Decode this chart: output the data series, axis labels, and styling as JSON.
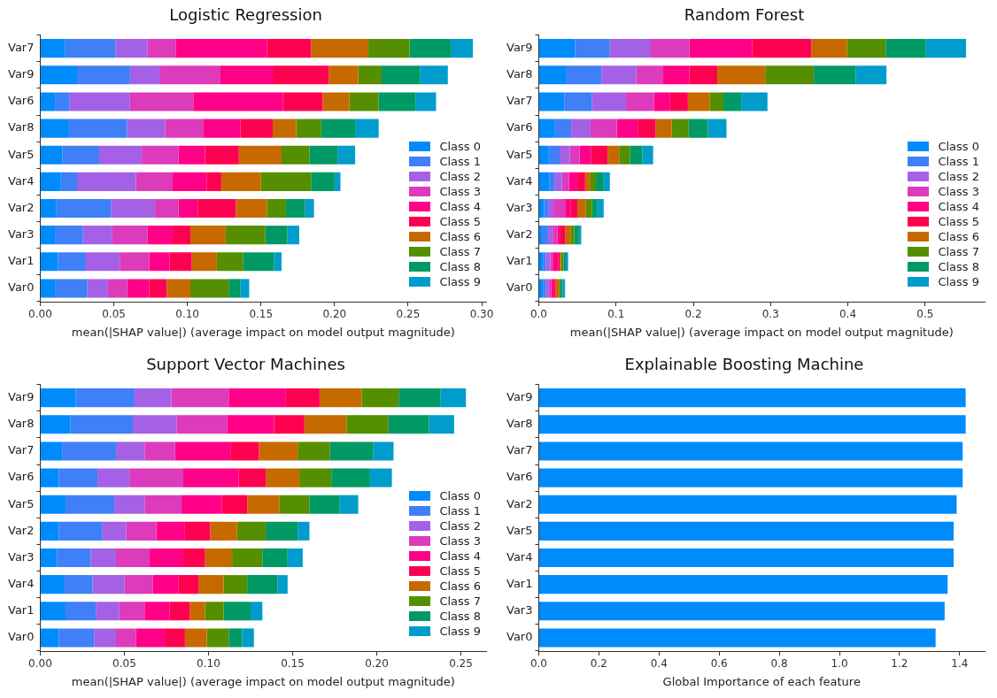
{
  "chart_data": [
    {
      "type": "bar",
      "orientation": "horizontal",
      "stacked": true,
      "title": "Logistic Regression",
      "xlabel": "mean(|SHAP value|) (average impact on model output magnitude)",
      "legend": "bottom right",
      "categories": [
        "Var7",
        "Var9",
        "Var6",
        "Var8",
        "Var5",
        "Var4",
        "Var2",
        "Var3",
        "Var1",
        "Var0"
      ],
      "xlim": [
        0,
        0.303
      ],
      "xticks": [
        {
          "value": 0,
          "label": "0.00"
        },
        {
          "value": 0.05,
          "label": "0.05"
        },
        {
          "value": 0.1,
          "label": "0.10"
        },
        {
          "value": 0.15,
          "label": "0.15"
        },
        {
          "value": 0.2,
          "label": "0.20"
        },
        {
          "value": 0.25,
          "label": "0.25"
        },
        {
          "value": 0.3,
          "label": "0.30"
        }
      ],
      "series": [
        {
          "name": "Class 0",
          "color": "#008bfb",
          "values": [
            0.017,
            0.025,
            0.01,
            0.019,
            0.015,
            0.014,
            0.011,
            0.01,
            0.012,
            0.01
          ]
        },
        {
          "name": "Class 1",
          "color": "#3f7ff7",
          "values": [
            0.034,
            0.036,
            0.01,
            0.04,
            0.025,
            0.011,
            0.037,
            0.019,
            0.019,
            0.022
          ]
        },
        {
          "name": "Class 2",
          "color": "#a561e6",
          "values": [
            0.022,
            0.02,
            0.041,
            0.026,
            0.029,
            0.04,
            0.03,
            0.02,
            0.023,
            0.014
          ]
        },
        {
          "name": "Class 3",
          "color": "#dc3bbb",
          "values": [
            0.019,
            0.041,
            0.043,
            0.026,
            0.025,
            0.025,
            0.016,
            0.024,
            0.02,
            0.013
          ]
        },
        {
          "name": "Class 4",
          "color": "#ff0087",
          "values": [
            0.062,
            0.036,
            0.061,
            0.025,
            0.018,
            0.023,
            0.013,
            0.017,
            0.014,
            0.015
          ]
        },
        {
          "name": "Class 5",
          "color": "#ff0050",
          "values": [
            0.03,
            0.038,
            0.027,
            0.022,
            0.023,
            0.01,
            0.026,
            0.012,
            0.015,
            0.012
          ]
        },
        {
          "name": "Class 6",
          "color": "#c66a00",
          "values": [
            0.039,
            0.02,
            0.018,
            0.016,
            0.029,
            0.027,
            0.021,
            0.024,
            0.017,
            0.016
          ]
        },
        {
          "name": "Class 7",
          "color": "#558f00",
          "values": [
            0.028,
            0.016,
            0.02,
            0.017,
            0.019,
            0.034,
            0.013,
            0.027,
            0.018,
            0.026
          ]
        },
        {
          "name": "Class 8",
          "color": "#009966",
          "values": [
            0.028,
            0.026,
            0.025,
            0.023,
            0.019,
            0.016,
            0.013,
            0.015,
            0.021,
            0.008
          ]
        },
        {
          "name": "Class 9",
          "color": "#009ccc",
          "values": [
            0.015,
            0.019,
            0.014,
            0.016,
            0.012,
            0.004,
            0.006,
            0.008,
            0.005,
            0.006
          ]
        }
      ]
    },
    {
      "type": "bar",
      "orientation": "horizontal",
      "stacked": true,
      "title": "Random Forest",
      "xlabel": "mean(|SHAP value|) (average impact on model output magnitude)",
      "legend": "bottom right",
      "categories": [
        "Var9",
        "Var8",
        "Var7",
        "Var6",
        "Var5",
        "Var4",
        "Var3",
        "Var2",
        "Var1",
        "Var0"
      ],
      "xlim": [
        0,
        0.577
      ],
      "xticks": [
        {
          "value": 0,
          "label": "0.0"
        },
        0.1,
        0.2,
        0.3,
        0.4,
        0.5
      ],
      "series": [
        {
          "name": "Class 0",
          "color": "#008bfb",
          "values": [
            0.047,
            0.036,
            0.033,
            0.021,
            0.013,
            0.014,
            0.007,
            0.004,
            0.006,
            0.006
          ]
        },
        {
          "name": "Class 1",
          "color": "#3f7ff7",
          "values": [
            0.045,
            0.045,
            0.036,
            0.021,
            0.014,
            0.007,
            0.005,
            0.008,
            0.003,
            0.003
          ]
        },
        {
          "name": "Class 2",
          "color": "#a561e6",
          "values": [
            0.053,
            0.045,
            0.044,
            0.025,
            0.013,
            0.009,
            0.007,
            0.006,
            0.006,
            0.004
          ]
        },
        {
          "name": "Class 3",
          "color": "#dc3bbb",
          "values": [
            0.05,
            0.035,
            0.036,
            0.034,
            0.013,
            0.009,
            0.015,
            0.006,
            0.003,
            0.003
          ]
        },
        {
          "name": "Class 4",
          "color": "#ff0087",
          "values": [
            0.081,
            0.034,
            0.021,
            0.027,
            0.015,
            0.011,
            0.007,
            0.004,
            0.007,
            0.004
          ]
        },
        {
          "name": "Class 5",
          "color": "#ff0050",
          "values": [
            0.077,
            0.036,
            0.023,
            0.023,
            0.021,
            0.01,
            0.009,
            0.006,
            0.002,
            0.002
          ]
        },
        {
          "name": "Class 6",
          "color": "#c66a00",
          "values": [
            0.046,
            0.062,
            0.028,
            0.021,
            0.015,
            0.007,
            0.011,
            0.007,
            0.002,
            0.004
          ]
        },
        {
          "name": "Class 7",
          "color": "#558f00",
          "values": [
            0.05,
            0.063,
            0.018,
            0.022,
            0.014,
            0.007,
            0.008,
            0.005,
            0.003,
            0.002
          ]
        },
        {
          "name": "Class 8",
          "color": "#009966",
          "values": [
            0.052,
            0.054,
            0.023,
            0.025,
            0.016,
            0.01,
            0.007,
            0.006,
            0.003,
            0.003
          ]
        },
        {
          "name": "Class 9",
          "color": "#009ccc",
          "values": [
            0.052,
            0.04,
            0.034,
            0.024,
            0.014,
            0.008,
            0.008,
            0.003,
            0.003,
            0.003
          ]
        }
      ]
    },
    {
      "type": "bar",
      "orientation": "horizontal",
      "stacked": true,
      "title": "Support Vector Machines",
      "xlabel": "mean(|SHAP value|) (average impact on model output magnitude)",
      "legend": "bottom right",
      "categories": [
        "Var9",
        "Var8",
        "Var7",
        "Var6",
        "Var5",
        "Var2",
        "Var3",
        "Var4",
        "Var1",
        "Var0"
      ],
      "xlim": [
        0,
        0.265
      ],
      "xticks": [
        {
          "value": 0,
          "label": "0.00"
        },
        {
          "value": 0.05,
          "label": "0.05"
        },
        {
          "value": 0.1,
          "label": "0.10"
        },
        {
          "value": 0.15,
          "label": "0.15"
        },
        {
          "value": 0.2,
          "label": "0.20"
        },
        {
          "value": 0.25,
          "label": "0.25"
        }
      ],
      "series": [
        {
          "name": "Class 0",
          "color": "#008bfb",
          "values": [
            0.021,
            0.018,
            0.013,
            0.011,
            0.015,
            0.011,
            0.01,
            0.014,
            0.015,
            0.011
          ]
        },
        {
          "name": "Class 1",
          "color": "#3f7ff7",
          "values": [
            0.035,
            0.037,
            0.032,
            0.023,
            0.029,
            0.026,
            0.02,
            0.017,
            0.018,
            0.021
          ]
        },
        {
          "name": "Class 2",
          "color": "#a561e6",
          "values": [
            0.022,
            0.026,
            0.017,
            0.019,
            0.018,
            0.014,
            0.015,
            0.019,
            0.014,
            0.013
          ]
        },
        {
          "name": "Class 3",
          "color": "#dc3bbb",
          "values": [
            0.034,
            0.03,
            0.018,
            0.032,
            0.022,
            0.018,
            0.02,
            0.017,
            0.015,
            0.012
          ]
        },
        {
          "name": "Class 4",
          "color": "#ff0087",
          "values": [
            0.034,
            0.028,
            0.033,
            0.033,
            0.024,
            0.017,
            0.02,
            0.015,
            0.015,
            0.017
          ]
        },
        {
          "name": "Class 5",
          "color": "#ff0050",
          "values": [
            0.02,
            0.018,
            0.017,
            0.016,
            0.015,
            0.015,
            0.013,
            0.012,
            0.012,
            0.012
          ]
        },
        {
          "name": "Class 6",
          "color": "#c66a00",
          "values": [
            0.025,
            0.025,
            0.023,
            0.02,
            0.019,
            0.016,
            0.016,
            0.015,
            0.009,
            0.013
          ]
        },
        {
          "name": "Class 7",
          "color": "#558f00",
          "values": [
            0.022,
            0.025,
            0.019,
            0.019,
            0.018,
            0.017,
            0.018,
            0.014,
            0.011,
            0.013
          ]
        },
        {
          "name": "Class 8",
          "color": "#009966",
          "values": [
            0.025,
            0.024,
            0.026,
            0.023,
            0.018,
            0.019,
            0.015,
            0.018,
            0.016,
            0.008
          ]
        },
        {
          "name": "Class 9",
          "color": "#009ccc",
          "values": [
            0.015,
            0.015,
            0.012,
            0.013,
            0.011,
            0.007,
            0.009,
            0.006,
            0.007,
            0.007
          ]
        }
      ]
    },
    {
      "type": "bar",
      "orientation": "horizontal",
      "title": "Explainable Boosting Machine",
      "xlabel": "Global Importance of each feature",
      "categories": [
        "Var9",
        "Var8",
        "Var7",
        "Var6",
        "Var2",
        "Var5",
        "Var4",
        "Var1",
        "Var3",
        "Var0"
      ],
      "xlim": [
        0,
        1.483
      ],
      "xticks": [
        {
          "value": 0,
          "label": "0.0"
        },
        0.2,
        0.4,
        0.6,
        0.8,
        {
          "value": 1,
          "label": "1.0"
        },
        1.2,
        1.4
      ],
      "color": "#008bfb",
      "values": [
        1.42,
        1.42,
        1.41,
        1.41,
        1.39,
        1.38,
        1.38,
        1.36,
        1.35,
        1.32
      ]
    }
  ]
}
